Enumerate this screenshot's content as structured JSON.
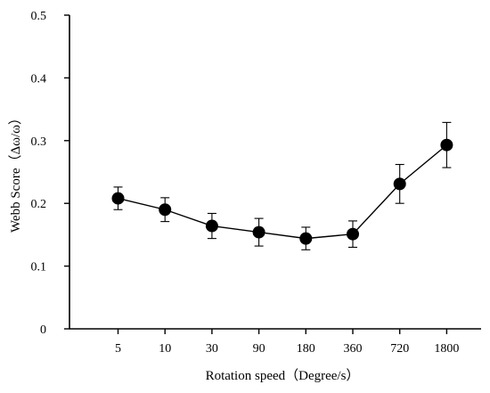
{
  "chart_data": {
    "type": "line",
    "title": "",
    "xlabel": "Rotation speed（Degree/s）",
    "ylabel": "Webb Score（Δω/ω）",
    "categories": [
      "5",
      "10",
      "30",
      "90",
      "180",
      "360",
      "720",
      "1800"
    ],
    "yticks": [
      "0",
      "0.1",
      "0.2",
      "0.3",
      "0.4",
      "0.5"
    ],
    "ylim": [
      0,
      0.5
    ],
    "grid": false,
    "series": [
      {
        "values": [
          0.208,
          0.19,
          0.164,
          0.154,
          0.144,
          0.151,
          0.231,
          0.293
        ],
        "errors": [
          0.018,
          0.019,
          0.02,
          0.022,
          0.018,
          0.021,
          0.031,
          0.036
        ],
        "color": "#000000",
        "marker": "circle"
      }
    ]
  }
}
